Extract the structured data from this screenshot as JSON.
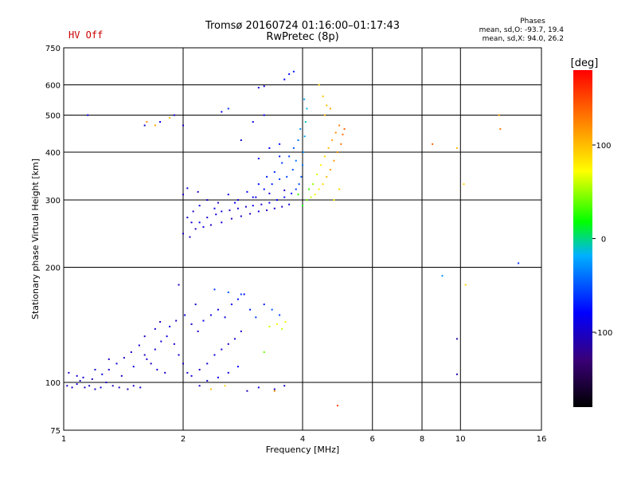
{
  "status": {
    "hv_label": "HV Off"
  },
  "header": {
    "title_line1": "Tromsø 20160724 01:16:00–01:17:43",
    "title_line2": "RwPretec (8p)"
  },
  "phases": {
    "heading": "Phases",
    "line_o": "mean, sd,O: -93.7, 19.4",
    "line_x": "mean, sd,X:  94.0, 26.2"
  },
  "chart_data": {
    "type": "scatter",
    "xlabel": "Frequency [MHz]",
    "ylabel": "Stationary phase Virtual Height [km]",
    "x_scale": "log",
    "y_scale": "log",
    "xlim": [
      1,
      16
    ],
    "ylim": [
      75,
      750
    ],
    "x_ticks": [
      1,
      2,
      4,
      6,
      8,
      10,
      16
    ],
    "y_ticks": [
      75,
      100,
      200,
      300,
      400,
      500,
      600,
      750
    ],
    "grid": true,
    "colorbar": {
      "label": "[deg]",
      "range": [
        -180,
        180
      ],
      "ticks": [
        100,
        0,
        -100
      ],
      "colors": [
        "#000000",
        "#3a0078",
        "#0000ff",
        "#00b0ff",
        "#00ff00",
        "#ffff00",
        "#ff8000",
        "#ff0000"
      ]
    },
    "series": [
      {
        "points": [
          [
            1.02,
            98,
            -100
          ],
          [
            1.05,
            97,
            -100
          ],
          [
            1.08,
            99,
            -95
          ],
          [
            1.1,
            101,
            -100
          ],
          [
            1.13,
            97,
            -105
          ],
          [
            1.16,
            98,
            -100
          ],
          [
            1.2,
            96,
            -100
          ],
          [
            1.24,
            97,
            -95
          ],
          [
            1.28,
            100,
            -100
          ],
          [
            1.33,
            98,
            -105
          ],
          [
            1.38,
            97,
            -100
          ],
          [
            1.45,
            96,
            -110
          ],
          [
            1.5,
            98,
            -100
          ],
          [
            1.56,
            97,
            -95
          ],
          [
            1.03,
            106,
            -100
          ],
          [
            1.08,
            104,
            -95
          ],
          [
            1.12,
            103,
            -100
          ],
          [
            1.18,
            102,
            -100
          ],
          [
            1.25,
            105,
            -90
          ],
          [
            1.3,
            108,
            -100
          ],
          [
            1.36,
            112,
            -95
          ],
          [
            1.42,
            116,
            -100
          ],
          [
            1.48,
            120,
            -100
          ],
          [
            1.55,
            125,
            -95
          ],
          [
            1.6,
            118,
            -105
          ],
          [
            1.66,
            112,
            -100
          ],
          [
            1.72,
            108,
            -95
          ],
          [
            1.8,
            106,
            -100
          ],
          [
            1.4,
            104,
            -100
          ],
          [
            1.5,
            110,
            -90
          ],
          [
            1.62,
            115,
            -100
          ],
          [
            1.7,
            122,
            -95
          ],
          [
            1.76,
            128,
            -100
          ],
          [
            1.82,
            132,
            -90
          ],
          [
            1.9,
            126,
            -100
          ],
          [
            1.95,
            118,
            -95
          ],
          [
            2.0,
            112,
            -100
          ],
          [
            2.05,
            106,
            -100
          ],
          [
            2.1,
            104,
            -95
          ],
          [
            2.2,
            108,
            -100
          ],
          [
            2.3,
            112,
            -95
          ],
          [
            2.4,
            118,
            -90
          ],
          [
            2.5,
            122,
            -95
          ],
          [
            2.6,
            126,
            -100
          ],
          [
            2.7,
            130,
            -95
          ],
          [
            2.8,
            136,
            -100
          ],
          [
            1.85,
            140,
            -95
          ],
          [
            1.92,
            145,
            -100
          ],
          [
            2.02,
            150,
            -90
          ],
          [
            2.1,
            142,
            -95
          ],
          [
            2.18,
            136,
            -100
          ],
          [
            2.25,
            145,
            -85
          ],
          [
            2.35,
            150,
            -90
          ],
          [
            2.45,
            155,
            -85
          ],
          [
            2.55,
            148,
            -90
          ],
          [
            2.65,
            160,
            -80
          ],
          [
            2.75,
            165,
            -75
          ],
          [
            2.85,
            170,
            -80
          ],
          [
            2.95,
            155,
            -70
          ],
          [
            3.05,
            148,
            -60
          ],
          [
            3.2,
            160,
            -70
          ],
          [
            3.35,
            155,
            -50
          ],
          [
            3.5,
            150,
            -55
          ],
          [
            2.4,
            175,
            -60
          ],
          [
            2.6,
            172,
            -50
          ],
          [
            2.8,
            170,
            -60
          ],
          [
            1.95,
            180,
            -100
          ],
          [
            2.15,
            160,
            -95
          ],
          [
            1.6,
            132,
            -100
          ],
          [
            1.7,
            138,
            -95
          ],
          [
            1.75,
            144,
            -100
          ],
          [
            1.3,
            115,
            -100
          ],
          [
            1.2,
            108,
            -95
          ],
          [
            2.2,
            98,
            -100
          ],
          [
            2.3,
            101,
            -95
          ],
          [
            2.45,
            103,
            -85
          ],
          [
            2.6,
            106,
            -90
          ],
          [
            2.75,
            110,
            -80
          ],
          [
            3.3,
            140,
            60
          ],
          [
            3.45,
            142,
            70
          ],
          [
            3.55,
            138,
            60
          ],
          [
            3.62,
            144,
            70
          ],
          [
            3.2,
            120,
            40
          ],
          [
            2.35,
            96,
            100
          ],
          [
            2.55,
            98,
            90
          ],
          [
            2.9,
            95,
            -100
          ],
          [
            3.1,
            97,
            -90
          ],
          [
            3.4,
            96,
            -100
          ],
          [
            3.6,
            98,
            -95
          ],
          [
            2.1,
            262,
            -100
          ],
          [
            2.05,
            270,
            -95
          ],
          [
            2.12,
            280,
            -100
          ],
          [
            2.2,
            262,
            -90
          ],
          [
            2.3,
            270,
            -100
          ],
          [
            2.42,
            275,
            -95
          ],
          [
            2.5,
            280,
            -90
          ],
          [
            2.62,
            282,
            -100
          ],
          [
            2.75,
            285,
            -95
          ],
          [
            2.88,
            288,
            -100
          ],
          [
            3.0,
            290,
            -90
          ],
          [
            3.15,
            292,
            -100
          ],
          [
            3.3,
            295,
            -85
          ],
          [
            3.45,
            300,
            -80
          ],
          [
            3.6,
            305,
            -75
          ],
          [
            3.75,
            312,
            -70
          ],
          [
            3.85,
            320,
            -60
          ],
          [
            3.92,
            330,
            -55
          ],
          [
            3.97,
            345,
            -50
          ],
          [
            4.0,
            370,
            -40
          ],
          [
            4.02,
            400,
            -30
          ],
          [
            4.05,
            440,
            -20
          ],
          [
            4.07,
            480,
            -10
          ],
          [
            4.1,
            520,
            -15
          ],
          [
            4.04,
            550,
            -25
          ],
          [
            2.3,
            300,
            -95
          ],
          [
            2.45,
            295,
            -100
          ],
          [
            2.6,
            310,
            -90
          ],
          [
            2.75,
            300,
            -95
          ],
          [
            2.9,
            315,
            -85
          ],
          [
            3.05,
            305,
            -90
          ],
          [
            3.2,
            320,
            -80
          ],
          [
            3.35,
            330,
            -70
          ],
          [
            3.5,
            340,
            -60
          ],
          [
            3.65,
            345,
            -55
          ],
          [
            3.78,
            360,
            -50
          ],
          [
            3.85,
            380,
            -40
          ],
          [
            2.0,
            245,
            -100
          ],
          [
            2.08,
            240,
            -105
          ],
          [
            2.15,
            252,
            -100
          ],
          [
            2.25,
            255,
            -95
          ],
          [
            2.35,
            258,
            -100
          ],
          [
            2.5,
            262,
            -95
          ],
          [
            2.65,
            268,
            -100
          ],
          [
            2.8,
            272,
            -95
          ],
          [
            2.95,
            276,
            -100
          ],
          [
            3.1,
            280,
            -95
          ],
          [
            3.25,
            282,
            -100
          ],
          [
            3.4,
            285,
            -95
          ],
          [
            3.55,
            288,
            -100
          ],
          [
            3.7,
            292,
            -95
          ],
          [
            2.2,
            290,
            -90
          ],
          [
            2.4,
            285,
            -85
          ],
          [
            2.7,
            295,
            -80
          ],
          [
            3.0,
            305,
            -90
          ],
          [
            3.3,
            312,
            -95
          ],
          [
            3.6,
            318,
            -100
          ],
          [
            3.1,
            330,
            -75
          ],
          [
            3.25,
            345,
            -70
          ],
          [
            3.4,
            355,
            -65
          ],
          [
            3.55,
            375,
            -60
          ],
          [
            3.7,
            390,
            -55
          ],
          [
            3.8,
            410,
            -50
          ],
          [
            3.3,
            410,
            -80
          ],
          [
            3.5,
            420,
            -75
          ],
          [
            3.6,
            620,
            -80
          ],
          [
            3.7,
            640,
            -75
          ],
          [
            3.8,
            650,
            -70
          ],
          [
            3.1,
            590,
            -90
          ],
          [
            3.2,
            595,
            -95
          ],
          [
            2.5,
            510,
            -80
          ],
          [
            2.6,
            520,
            -60
          ],
          [
            3.0,
            480,
            -90
          ],
          [
            3.2,
            500,
            -85
          ],
          [
            2.8,
            430,
            -95
          ],
          [
            2.0,
            470,
            -100
          ],
          [
            1.9,
            500,
            -100
          ],
          [
            1.75,
            480,
            -90
          ],
          [
            1.6,
            470,
            -100
          ],
          [
            1.15,
            500,
            -90
          ],
          [
            3.9,
            430,
            -40
          ],
          [
            3.95,
            460,
            -30
          ],
          [
            2.0,
            310,
            -100
          ],
          [
            2.05,
            322,
            -95
          ],
          [
            2.18,
            315,
            -100
          ],
          [
            3.1,
            385,
            -80
          ],
          [
            3.5,
            390,
            -70
          ],
          [
            4.2,
            305,
            60
          ],
          [
            4.3,
            310,
            70
          ],
          [
            4.4,
            320,
            80
          ],
          [
            4.5,
            330,
            90
          ],
          [
            4.6,
            345,
            100
          ],
          [
            4.7,
            360,
            110
          ],
          [
            4.8,
            380,
            115
          ],
          [
            4.9,
            400,
            120
          ],
          [
            5.0,
            420,
            130
          ],
          [
            5.05,
            445,
            135
          ],
          [
            5.1,
            460,
            140
          ],
          [
            4.25,
            330,
            50
          ],
          [
            4.35,
            350,
            65
          ],
          [
            4.45,
            370,
            75
          ],
          [
            4.55,
            390,
            90
          ],
          [
            4.65,
            410,
            100
          ],
          [
            4.75,
            430,
            110
          ],
          [
            4.85,
            450,
            120
          ],
          [
            4.95,
            470,
            125
          ],
          [
            4.55,
            500,
            105
          ],
          [
            4.6,
            530,
            100
          ],
          [
            4.5,
            560,
            95
          ],
          [
            4.7,
            520,
            110
          ],
          [
            4.4,
            600,
            90
          ],
          [
            4.1,
            300,
            40
          ],
          [
            4.15,
            320,
            30
          ],
          [
            3.9,
            310,
            30
          ],
          [
            4.0,
            290,
            20
          ],
          [
            4.8,
            300,
            80
          ],
          [
            4.95,
            320,
            90
          ],
          [
            1.7,
            470,
            110
          ],
          [
            1.62,
            480,
            120
          ],
          [
            1.85,
            492,
            100
          ],
          [
            12.5,
            500,
            110
          ],
          [
            12.6,
            460,
            130
          ],
          [
            8.5,
            420,
            140
          ],
          [
            9.8,
            410,
            100
          ],
          [
            10.2,
            330,
            90
          ],
          [
            10.3,
            180,
            90
          ],
          [
            9.0,
            190,
            -30
          ],
          [
            9.8,
            130,
            -110
          ],
          [
            9.8,
            105,
            -110
          ],
          [
            14.0,
            205,
            -60
          ],
          [
            4.9,
            87,
            150
          ],
          [
            3.4,
            95,
            120
          ]
        ]
      }
    ]
  }
}
